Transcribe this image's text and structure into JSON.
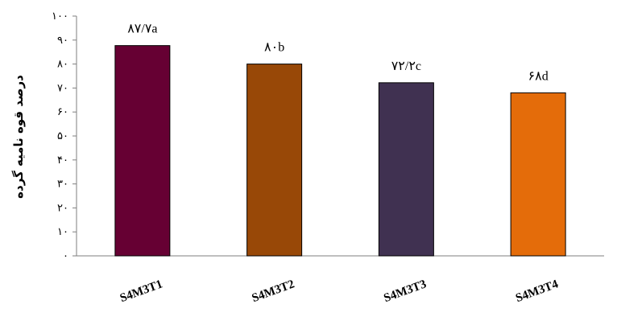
{
  "chart_data": {
    "type": "bar",
    "categories": [
      "S4M3T1",
      "S4M3T2",
      "S4M3T3",
      "S4M3T4"
    ],
    "values": [
      87.7,
      80,
      72.2,
      68
    ],
    "data_labels": [
      "۸۷/۷a",
      "۸۰b",
      "۷۲/۲c",
      "۶۸d"
    ],
    "colors": [
      "#660033",
      "#984807",
      "#403151",
      "#E46C0A"
    ],
    "title": "",
    "xlabel": "",
    "ylabel": "درصد قوه نامیه گرده",
    "ylim": [
      0,
      100
    ],
    "yticks": [
      0,
      10,
      20,
      30,
      40,
      50,
      60,
      70,
      80,
      90,
      100
    ],
    "ytick_labels": [
      "۰",
      "۱۰",
      "۲۰",
      "۳۰",
      "۴۰",
      "۵۰",
      "۶۰",
      "۷۰",
      "۸۰",
      "۹۰",
      "۱۰۰"
    ],
    "grid": false,
    "legend": "none"
  }
}
